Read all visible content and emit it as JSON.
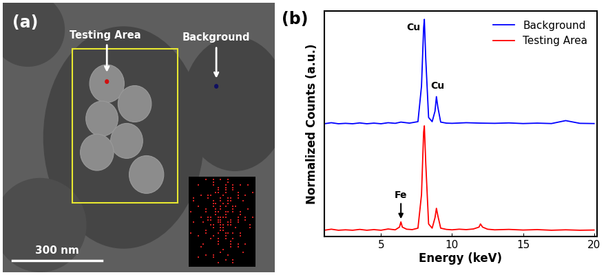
{
  "image_panel": {
    "panel_label": "(a)",
    "testing_label": "Testing Area",
    "background_label": "Background",
    "scale_bar": "300 nm"
  },
  "chart_data": {
    "type": "line",
    "title": "(b)",
    "x_label": "Energy (keV)",
    "y_label": "Normalized Counts (a.u.)",
    "xlim": [
      1,
      20.2
    ],
    "xticks": [
      5,
      10,
      15,
      20
    ],
    "ylim": [
      0,
      1.08
    ],
    "tick_labels": "x",
    "legend": "upper right",
    "series": [
      {
        "name": "Background",
        "color": "#0000ff",
        "x": [
          1,
          1.5,
          2,
          2.5,
          3,
          3.5,
          4,
          4.5,
          5,
          5.5,
          6,
          6.4,
          7,
          7.6,
          7.85,
          8.0,
          8.05,
          8.15,
          8.35,
          8.6,
          8.8,
          8.9,
          9.0,
          9.2,
          9.6,
          10,
          11,
          12,
          13,
          14,
          15,
          16,
          17,
          18,
          19,
          20
        ],
        "values": [
          0.54,
          0.545,
          0.54,
          0.542,
          0.54,
          0.544,
          0.54,
          0.543,
          0.54,
          0.545,
          0.542,
          0.548,
          0.543,
          0.55,
          0.72,
          1.0,
          1.04,
          0.85,
          0.57,
          0.55,
          0.6,
          0.67,
          0.62,
          0.548,
          0.543,
          0.542,
          0.545,
          0.543,
          0.542,
          0.544,
          0.541,
          0.543,
          0.541,
          0.555,
          0.542,
          0.541
        ]
      },
      {
        "name": "Testing Area",
        "color": "#ff0000",
        "x": [
          1,
          1.5,
          2,
          2.5,
          3,
          3.5,
          4,
          4.5,
          5,
          5.5,
          6,
          6.3,
          6.4,
          6.5,
          6.8,
          7.2,
          7.6,
          7.85,
          8.0,
          8.05,
          8.15,
          8.35,
          8.6,
          8.8,
          8.9,
          9.0,
          9.2,
          9.6,
          10,
          10.5,
          11,
          11.5,
          11.9,
          12.0,
          12.15,
          12.5,
          13,
          14,
          15,
          16,
          17,
          18,
          19,
          20
        ],
        "values": [
          0.03,
          0.035,
          0.03,
          0.032,
          0.03,
          0.034,
          0.03,
          0.033,
          0.03,
          0.036,
          0.032,
          0.045,
          0.07,
          0.045,
          0.035,
          0.033,
          0.04,
          0.2,
          0.5,
          0.53,
          0.35,
          0.06,
          0.04,
          0.09,
          0.135,
          0.1,
          0.04,
          0.034,
          0.032,
          0.035,
          0.033,
          0.036,
          0.045,
          0.06,
          0.045,
          0.035,
          0.032,
          0.034,
          0.031,
          0.033,
          0.03,
          0.032,
          0.03,
          0.031
        ]
      }
    ],
    "annotations": [
      {
        "text": "Cu",
        "x": 7.3,
        "y": 1.0,
        "arrow": false
      },
      {
        "text": "Cu",
        "x": 9.0,
        "y": 0.72,
        "arrow": false
      },
      {
        "text": "Fe",
        "x": 6.4,
        "y": 0.075,
        "arrow": true
      }
    ]
  }
}
